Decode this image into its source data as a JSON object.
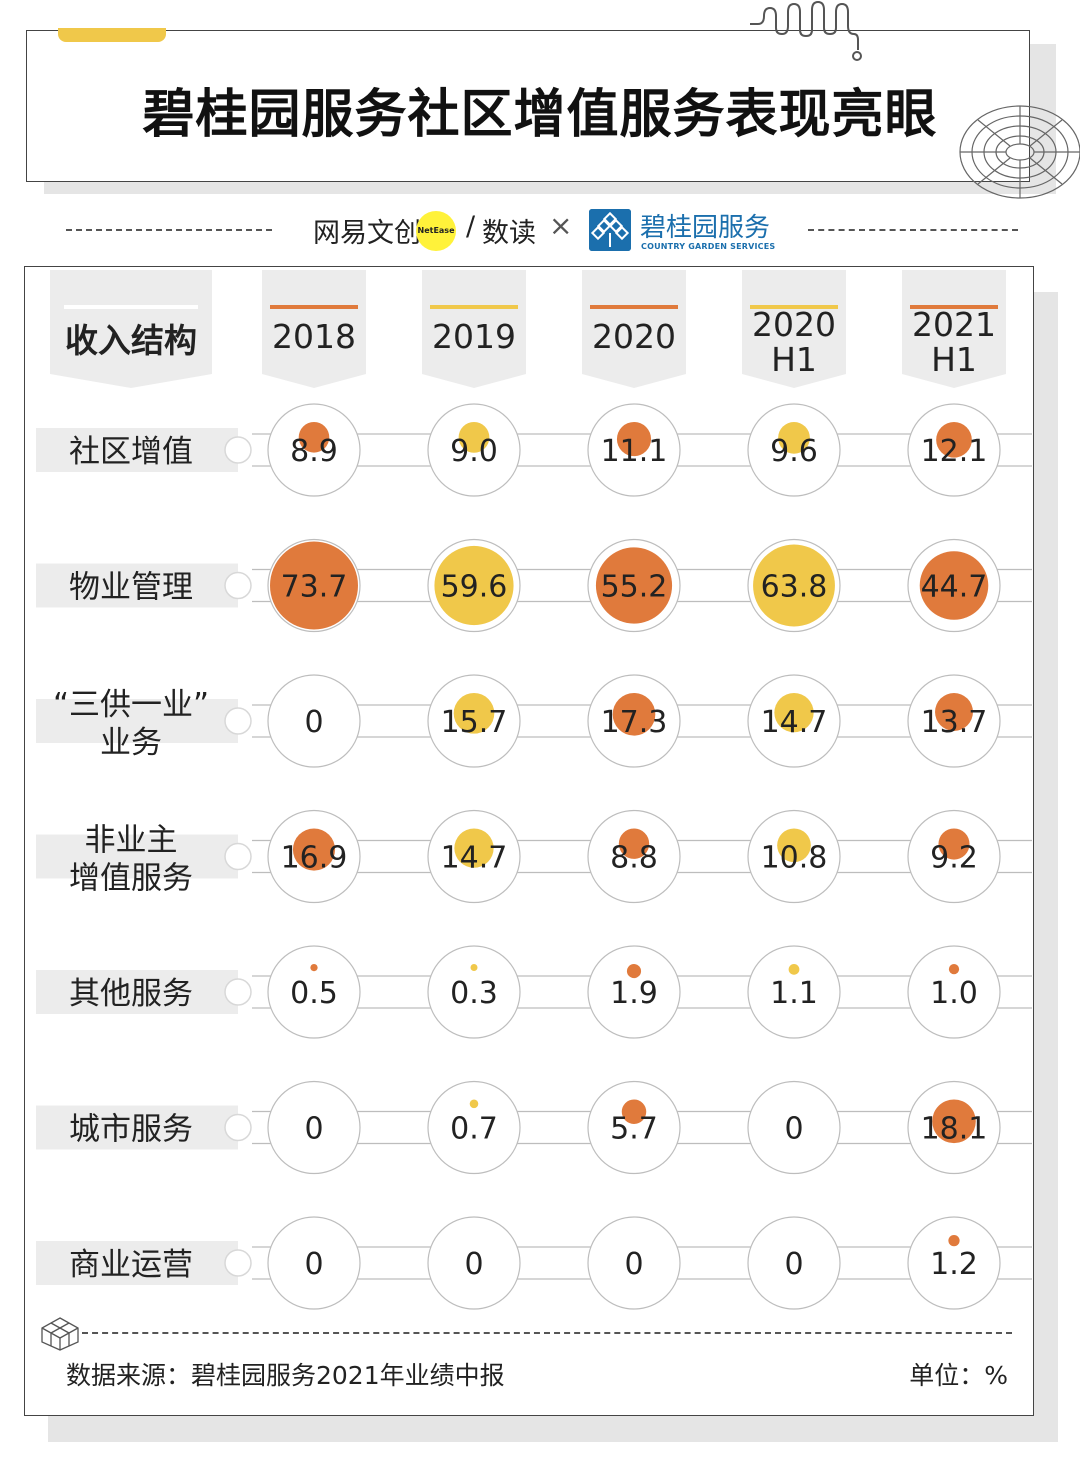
{
  "header": {
    "title": "碧桂园服务社区增值服务表现亮眼"
  },
  "brands": {
    "netease": "网易文创",
    "netease_dot": "NetEase",
    "slash": "/",
    "shudu": "数读",
    "times": "×",
    "partner_name": "碧桂园服务",
    "partner_sub": "COUNTRY GARDEN SERVICES"
  },
  "footer": {
    "source": "数据来源：碧桂园服务2021年业绩中报",
    "unit": "单位：%"
  },
  "colors": {
    "orange": "#e07a3c",
    "yellow": "#f0c84a",
    "grey_panel": "#ececec"
  },
  "chart_data": {
    "type": "table",
    "header_label": "收入结构",
    "columns": [
      {
        "label": [
          "2018"
        ],
        "color": "orange"
      },
      {
        "label": [
          "2019"
        ],
        "color": "yellow"
      },
      {
        "label": [
          "2020"
        ],
        "color": "orange"
      },
      {
        "label": [
          "2020",
          "H1"
        ],
        "color": "yellow"
      },
      {
        "label": [
          "2021",
          "H1"
        ],
        "color": "orange"
      }
    ],
    "rows": [
      {
        "label": [
          "社区增值"
        ],
        "values": [
          "8.9",
          "9.0",
          "11.1",
          "9.6",
          "12.1"
        ]
      },
      {
        "label": [
          "物业管理"
        ],
        "values": [
          "73.7",
          "59.6",
          "55.2",
          "63.8",
          "44.7"
        ]
      },
      {
        "label": [
          "“三供一业”",
          "业务"
        ],
        "values": [
          "0",
          "15.7",
          "17.3",
          "14.7",
          "13.7"
        ]
      },
      {
        "label": [
          "非业主",
          "增值服务"
        ],
        "values": [
          "16.9",
          "14.7",
          "8.8",
          "10.8",
          "9.2"
        ]
      },
      {
        "label": [
          "其他服务"
        ],
        "values": [
          "0.5",
          "0.3",
          "1.9",
          "1.1",
          "1.0"
        ]
      },
      {
        "label": [
          "城市服务"
        ],
        "values": [
          "0",
          "0.7",
          "5.7",
          "0",
          "18.1"
        ]
      },
      {
        "label": [
          "商业运营"
        ],
        "values": [
          "0",
          "0",
          "0",
          "0",
          "1.2"
        ]
      }
    ]
  }
}
